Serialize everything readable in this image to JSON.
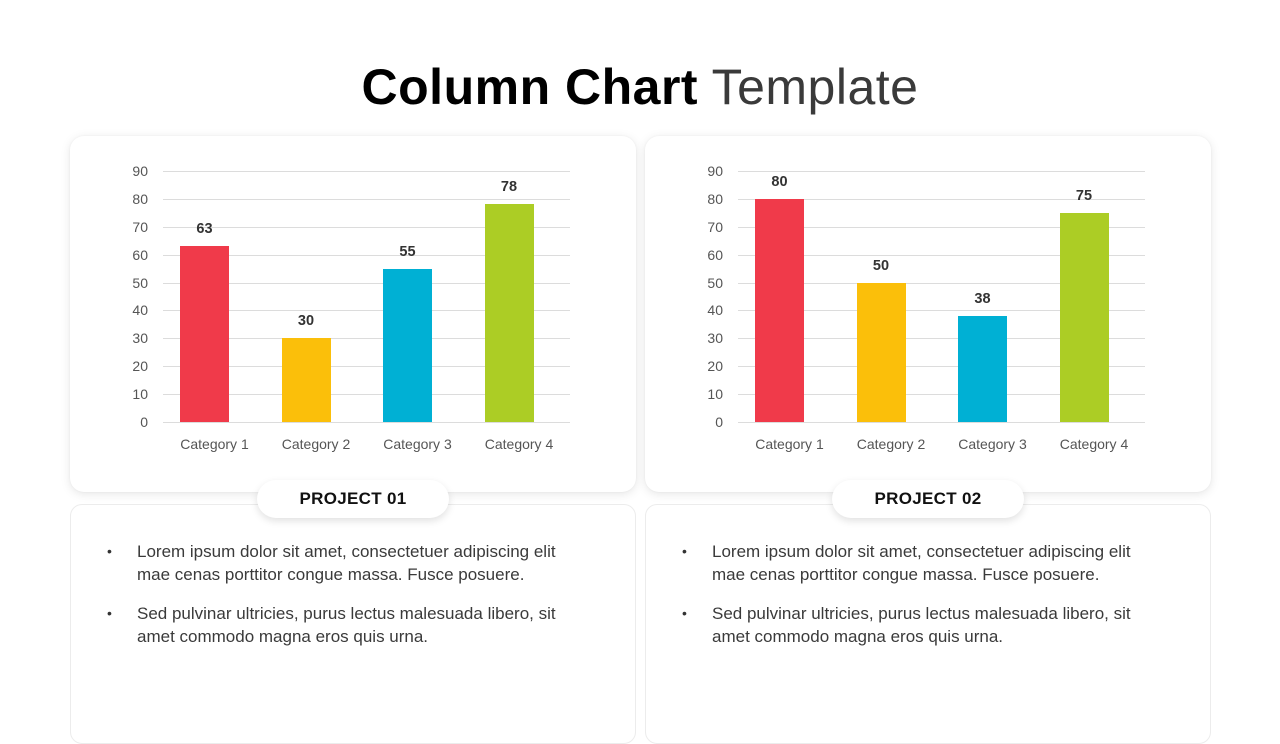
{
  "title": {
    "bold": "Column Chart",
    "light": "Template"
  },
  "colors": {
    "red": "#F03A4A",
    "yellow": "#FBBF0A",
    "cyan": "#00B0D4",
    "green": "#ACCD25"
  },
  "chart_data": [
    {
      "type": "bar",
      "title": "PROJECT 01",
      "categories": [
        "Category 1",
        "Category 2",
        "Category 3",
        "Category 4"
      ],
      "values": [
        63,
        30,
        55,
        78
      ],
      "bar_colors": [
        "#F03A4A",
        "#FBBF0A",
        "#00B0D4",
        "#ACCD25"
      ],
      "xlabel": "",
      "ylabel": "",
      "ylim": [
        0,
        90
      ],
      "yticks": [
        0,
        10,
        20,
        30,
        40,
        50,
        60,
        70,
        80,
        90
      ],
      "grid": true,
      "data_labels": true
    },
    {
      "type": "bar",
      "title": "PROJECT 02",
      "categories": [
        "Category 1",
        "Category 2",
        "Category 3",
        "Category 4"
      ],
      "values": [
        80,
        50,
        38,
        75
      ],
      "bar_colors": [
        "#F03A4A",
        "#FBBF0A",
        "#00B0D4",
        "#ACCD25"
      ],
      "xlabel": "",
      "ylabel": "",
      "ylim": [
        0,
        90
      ],
      "yticks": [
        0,
        10,
        20,
        30,
        40,
        50,
        60,
        70,
        80,
        90
      ],
      "grid": true,
      "data_labels": true
    }
  ],
  "projects": [
    {
      "label": "PROJECT 01",
      "bullets": [
        "Lorem ipsum dolor sit amet, consectetuer adipiscing elit mae cenas porttitor congue massa. Fusce posuere.",
        "Sed pulvinar ultricies, purus lectus malesuada libero, sit amet commodo magna eros quis urna."
      ]
    },
    {
      "label": "PROJECT 02",
      "bullets": [
        "Lorem ipsum dolor sit amet, consectetuer adipiscing elit mae cenas porttitor congue massa. Fusce posuere.",
        "Sed pulvinar ultricies, purus lectus malesuada libero, sit amet commodo magna eros quis urna."
      ]
    }
  ],
  "bullet_glyph": "•"
}
